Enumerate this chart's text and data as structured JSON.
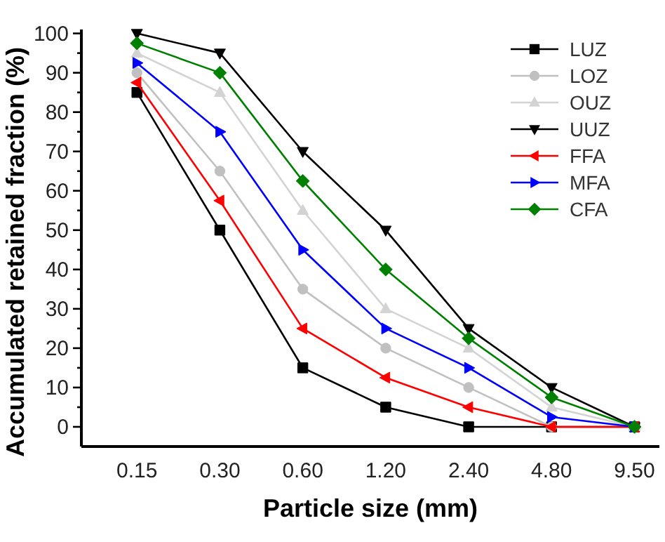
{
  "chart_data": {
    "type": "line",
    "xlabel": "Particle size (mm)",
    "ylabel": "Accumulated retained fraction (%)",
    "categories": [
      "0.15",
      "0.30",
      "0.60",
      "1.20",
      "2.40",
      "4.80",
      "9.50"
    ],
    "ylim": [
      -5,
      101
    ],
    "yticks": [
      0,
      {
        "value": 5,
        "label": null
      },
      10,
      {
        "value": 15,
        "label": null
      },
      20,
      {
        "value": 25,
        "label": null
      },
      30,
      {
        "value": 35,
        "label": null
      },
      40,
      {
        "value": 45,
        "label": null
      },
      50,
      {
        "value": 55,
        "label": null
      },
      60,
      {
        "value": 65,
        "label": null
      },
      70,
      {
        "value": 75,
        "label": null
      },
      80,
      {
        "value": 85,
        "label": null
      },
      90,
      {
        "value": 95,
        "label": null
      },
      100
    ],
    "legend": "top right",
    "grid": false,
    "line_style": "solid",
    "series": [
      {
        "name": "LUZ",
        "color": "#000000",
        "marker": "square",
        "values": [
          85,
          50,
          15,
          5,
          0,
          0,
          0
        ]
      },
      {
        "name": "LOZ",
        "color": "#c0c0c0",
        "marker": "circle",
        "values": [
          90,
          65,
          35,
          20,
          10,
          0,
          0
        ]
      },
      {
        "name": "OUZ",
        "color": "#d3d3d3",
        "marker": "triangle",
        "values": [
          95,
          85,
          55,
          30,
          20,
          5,
          0
        ]
      },
      {
        "name": "UUZ",
        "color": "#000000",
        "marker": "triangle-down",
        "values": [
          100,
          95,
          70,
          50,
          25,
          10,
          0
        ]
      },
      {
        "name": "FFA",
        "color": "#ff0000",
        "marker": "triangle-left",
        "values": [
          87.5,
          57.5,
          25,
          12.5,
          5,
          0,
          0
        ]
      },
      {
        "name": "MFA",
        "color": "#0000ff",
        "marker": "triangle-right",
        "values": [
          92.5,
          75,
          45,
          25,
          15,
          2.5,
          0
        ]
      },
      {
        "name": "CFA",
        "color": "#008000",
        "marker": "diamond",
        "values": [
          97.5,
          90,
          62.5,
          40,
          22.5,
          7.5,
          0
        ]
      }
    ]
  }
}
